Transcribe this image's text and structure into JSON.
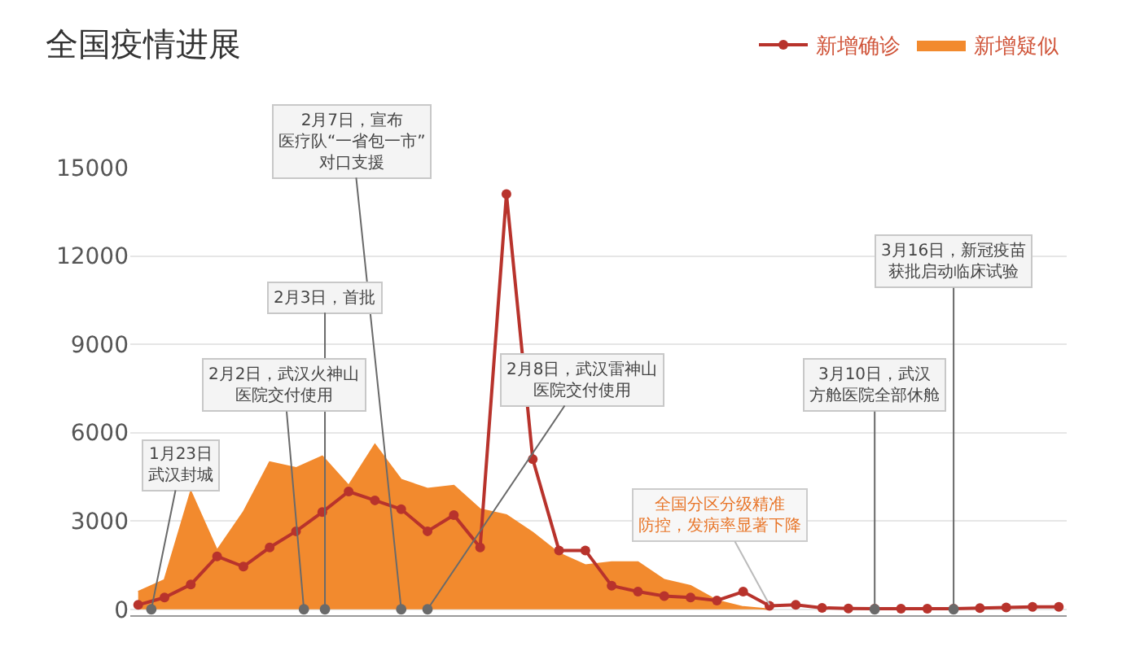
{
  "chart_data": {
    "type": "line",
    "title": "全国疫情进展",
    "categories": [
      null,
      null,
      null,
      null,
      null,
      null,
      null,
      null,
      null,
      null,
      null,
      null,
      null,
      null,
      null,
      null,
      null,
      null,
      null,
      null,
      null,
      null,
      null,
      null,
      null,
      null,
      null,
      null,
      null,
      null,
      null,
      null,
      null,
      null,
      null,
      null
    ],
    "series": [
      {
        "name": "新增疑似",
        "type": "area",
        "color": "#f28a2e",
        "values": [
          600,
          1000,
          4000,
          2000,
          3300,
          5000,
          4800,
          5200,
          4200,
          5600,
          4400,
          4100,
          4200,
          3400,
          3200,
          2600,
          1900,
          1500,
          1600,
          1600,
          1000,
          800,
          300,
          80,
          0,
          null,
          null,
          null,
          null,
          null,
          null,
          null,
          null,
          null,
          null,
          null
        ]
      },
      {
        "name": "新增确诊",
        "color": "#b8332c",
        "marker": "circle",
        "values": [
          150,
          400,
          840,
          1800,
          1450,
          2100,
          2650,
          3300,
          4000,
          3700,
          3400,
          2650,
          3200,
          2100,
          14100,
          5100,
          2000,
          2000,
          800,
          600,
          450,
          400,
          300,
          600,
          120,
          150,
          50,
          30,
          20,
          20,
          20,
          20,
          40,
          60,
          80,
          80
        ]
      }
    ],
    "ylim": [
      -200,
      15000
    ],
    "yticks": [
      0,
      3000,
      6000,
      9000,
      12000,
      15000
    ],
    "tick_labels": "y",
    "grid": "y",
    "legend": "top right",
    "annotations": [
      "1月23日武汉封城",
      "2月2日，武汉火神山医院交付使用",
      "2月3日，首批",
      "2月7日，宣布医疗队“一省包一市”对口支援",
      "2月8日，武汉雷神山医院交付使用",
      "3月10日，武汉方舱医院全部休舱",
      "3月16日，新冠疫苗获批启动临床试验",
      "全国分区分级精准防控，发病率显著下降"
    ]
  }
}
